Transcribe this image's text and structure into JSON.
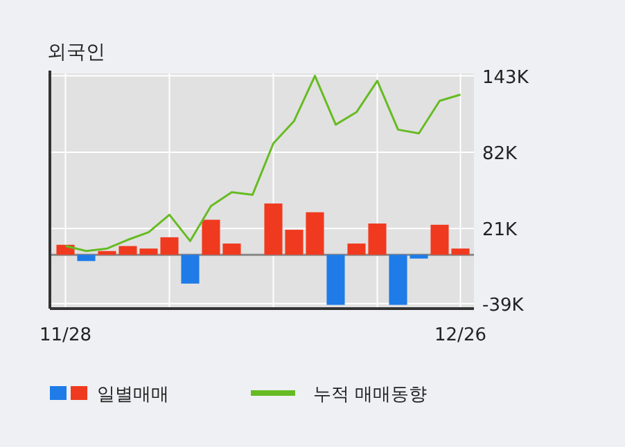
{
  "chart_data": {
    "type": "bar",
    "title": "외국인",
    "categories": [
      "11/28",
      null,
      null,
      null,
      null,
      null,
      null,
      null,
      null,
      null,
      null,
      null,
      null,
      null,
      null,
      null,
      null,
      null,
      null,
      "12/26"
    ],
    "series": [
      {
        "name": "일별매매",
        "color": "#f03a1f",
        "colors": [
          "#f03a1f",
          "#1e7be8",
          "#f03a1f",
          "#f03a1f",
          "#f03a1f",
          "#f03a1f",
          "#1e7be8",
          "#f03a1f",
          "#f03a1f",
          "#f03a1f",
          "#f03a1f",
          "#f03a1f",
          "#f03a1f",
          "#1e7be8",
          "#f03a1f",
          "#f03a1f",
          "#1e7be8",
          "#1e7be8",
          "#f03a1f",
          "#f03a1f"
        ],
        "values": [
          8,
          -5,
          3,
          7,
          5,
          14,
          -23,
          28,
          9,
          0,
          41,
          20,
          34,
          -40,
          9,
          25,
          -40,
          -3,
          24,
          5
        ]
      },
      {
        "name": "누적 매매동향",
        "type": "line",
        "color": "#66bb22",
        "values": [
          7,
          3,
          5,
          12,
          18,
          32,
          11,
          39,
          50,
          48,
          89,
          107,
          143,
          104,
          114,
          139,
          100,
          97,
          123,
          128
        ]
      }
    ],
    "ylim": [
      -43,
      145
    ],
    "yticks": [
      {
        "value": 143,
        "label": "143K"
      },
      {
        "value": 82,
        "label": "82K"
      },
      {
        "value": 21,
        "label": "21K"
      },
      {
        "value": -39,
        "label": "-39K"
      }
    ],
    "grid": true,
    "legend": "bottom",
    "marker": "none",
    "line_style": "solid"
  }
}
